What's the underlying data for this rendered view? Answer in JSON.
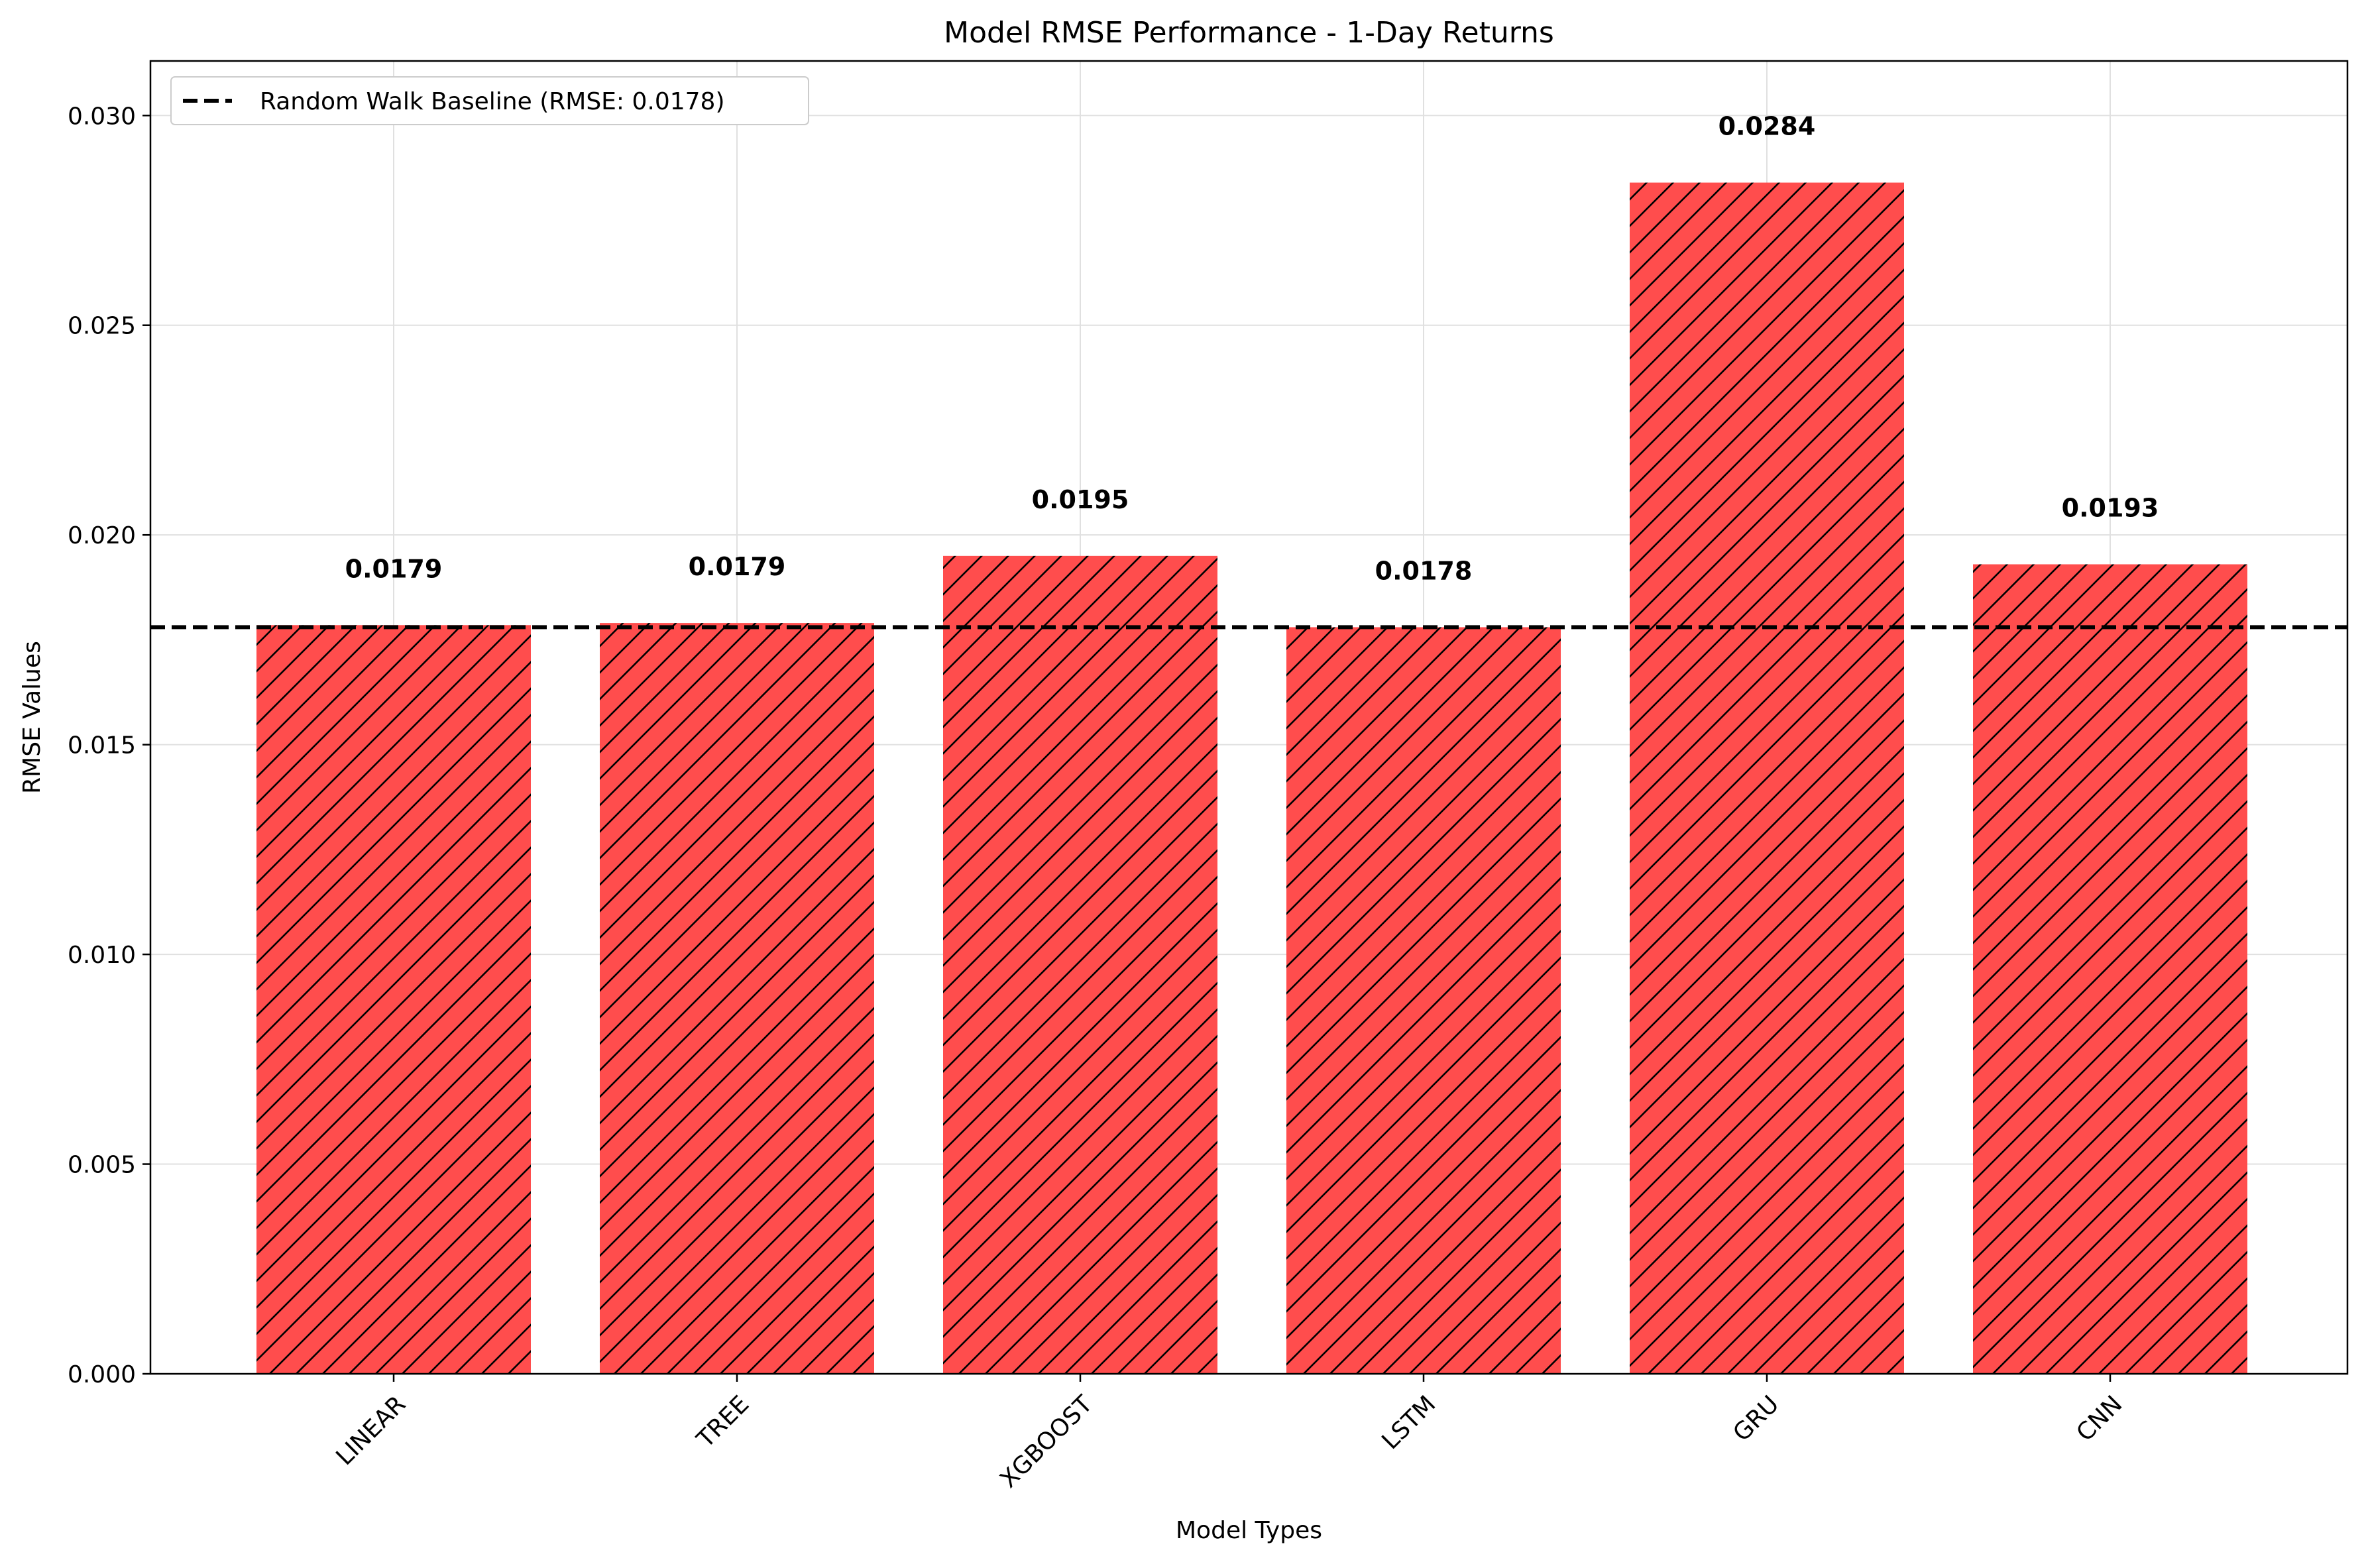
{
  "chart_data": {
    "type": "bar",
    "title": "Model RMSE Performance - 1-Day Returns",
    "xlabel": "Model Types",
    "ylabel": "RMSE Values",
    "categories": [
      "LINEAR",
      "TREE",
      "XGBOOST",
      "LSTM",
      "GRU",
      "CNN"
    ],
    "values": [
      0.01785,
      0.0179,
      0.0195,
      0.0178,
      0.0284,
      0.0193
    ],
    "value_labels": [
      "0.0179",
      "0.0179",
      "0.0195",
      "0.0178",
      "0.0284",
      "0.0193"
    ],
    "ylim": [
      0,
      0.0313
    ],
    "yticks": [
      0.0,
      0.005,
      0.01,
      0.015,
      0.02,
      0.025,
      0.03
    ],
    "ytick_labels": [
      "0.000",
      "0.005",
      "0.010",
      "0.015",
      "0.020",
      "0.025",
      "0.030"
    ],
    "grid": true,
    "bar_color": "#ff4d4d",
    "bar_hatch": "diagonal",
    "baseline": {
      "value": 0.0178,
      "label": "Random Walk Baseline (RMSE: 0.0178)",
      "style": "dashed",
      "color": "#000000"
    },
    "legend_position": "top-left"
  }
}
